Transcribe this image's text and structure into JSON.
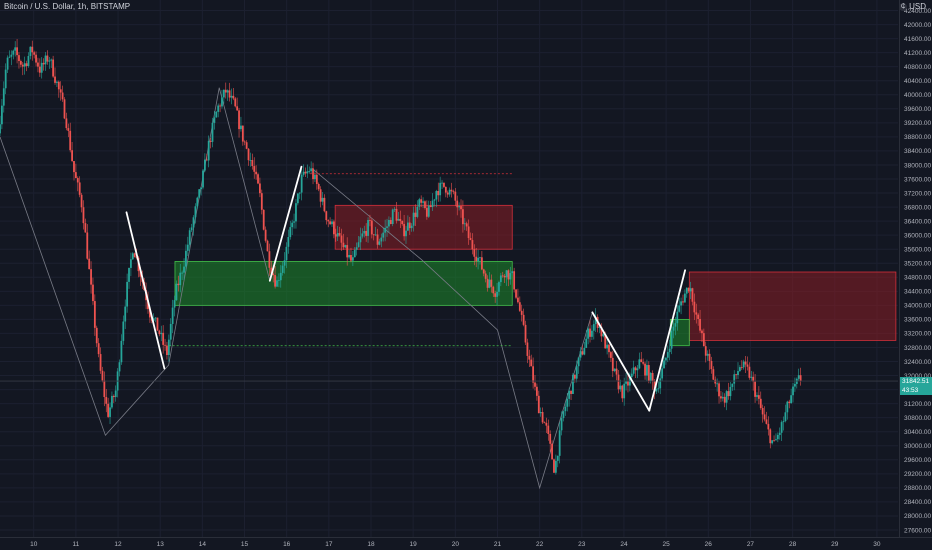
{
  "header": {
    "symbol_line": "Bitcoin / U.S. Dollar, 1h, BITSTAMP",
    "currency_icon": "coin-icon",
    "currency": "USD"
  },
  "price_tags": {
    "last_price": "31842.51",
    "countdown": "43:53",
    "tag_color": "#26a69a"
  },
  "colors": {
    "background": "#131722",
    "up": "#26a69a",
    "down": "#ef5350",
    "demand_zone": "#1e8a2a",
    "supply_zone": "#8a1d24",
    "swing_line": "#ffffff",
    "thin_line": "#787b86"
  },
  "chart_data": {
    "type": "candlestick",
    "title": "",
    "xlabel": "",
    "ylabel": "",
    "y_axis": {
      "ticks": [
        "42400.00",
        "42000.00",
        "41600.00",
        "41200.00",
        "40800.00",
        "40400.00",
        "40000.00",
        "39600.00",
        "39200.00",
        "38800.00",
        "38400.00",
        "38000.00",
        "37600.00",
        "37200.00",
        "36800.00",
        "36400.00",
        "36000.00",
        "35600.00",
        "35200.00",
        "34800.00",
        "34400.00",
        "34000.00",
        "33600.00",
        "33200.00",
        "32800.00",
        "32400.00",
        "32000.00",
        "31600.00",
        "31200.00",
        "30800.00",
        "30400.00",
        "30000.00",
        "29600.00",
        "29200.00",
        "28800.00",
        "28400.00",
        "28000.00",
        "27600.00"
      ],
      "ylim": [
        27400,
        42700
      ]
    },
    "x_axis": {
      "ticks": [
        "10",
        "11",
        "12",
        "13",
        "14",
        "15",
        "16",
        "17",
        "18",
        "19",
        "20",
        "21",
        "22",
        "23",
        "24",
        "25",
        "26",
        "27",
        "28",
        "29",
        "30"
      ],
      "xlim": [
        9.2,
        30.5
      ]
    },
    "price_path": [
      [
        9.2,
        38900
      ],
      [
        9.4,
        40900
      ],
      [
        9.6,
        41200
      ],
      [
        9.8,
        40800
      ],
      [
        10.0,
        41300
      ],
      [
        10.2,
        40700
      ],
      [
        10.4,
        41100
      ],
      [
        10.6,
        40300
      ],
      [
        10.8,
        39400
      ],
      [
        11.0,
        37800
      ],
      [
        11.2,
        36800
      ],
      [
        11.4,
        34500
      ],
      [
        11.6,
        32300
      ],
      [
        11.8,
        30900
      ],
      [
        12.0,
        31600
      ],
      [
        12.2,
        34000
      ],
      [
        12.4,
        35700
      ],
      [
        12.6,
        34800
      ],
      [
        12.8,
        33800
      ],
      [
        13.0,
        33300
      ],
      [
        13.2,
        32600
      ],
      [
        13.4,
        34300
      ],
      [
        13.6,
        35200
      ],
      [
        13.8,
        36300
      ],
      [
        14.0,
        37300
      ],
      [
        14.2,
        38600
      ],
      [
        14.4,
        39600
      ],
      [
        14.6,
        40100
      ],
      [
        14.8,
        39700
      ],
      [
        15.0,
        38800
      ],
      [
        15.2,
        38100
      ],
      [
        15.4,
        37200
      ],
      [
        15.6,
        35400
      ],
      [
        15.8,
        34600
      ],
      [
        16.0,
        35400
      ],
      [
        16.2,
        36400
      ],
      [
        16.4,
        37600
      ],
      [
        16.6,
        37900
      ],
      [
        16.8,
        37300
      ],
      [
        17.0,
        36500
      ],
      [
        17.2,
        36100
      ],
      [
        17.4,
        35600
      ],
      [
        17.6,
        35200
      ],
      [
        17.8,
        35900
      ],
      [
        18.0,
        36300
      ],
      [
        18.2,
        35800
      ],
      [
        18.4,
        36200
      ],
      [
        18.6,
        36700
      ],
      [
        18.8,
        36100
      ],
      [
        19.0,
        36400
      ],
      [
        19.2,
        36900
      ],
      [
        19.4,
        36600
      ],
      [
        19.6,
        37300
      ],
      [
        19.8,
        37400
      ],
      [
        20.0,
        37100
      ],
      [
        20.2,
        36500
      ],
      [
        20.4,
        35800
      ],
      [
        20.6,
        35300
      ],
      [
        20.8,
        34700
      ],
      [
        21.0,
        34400
      ],
      [
        21.2,
        35000
      ],
      [
        21.4,
        34800
      ],
      [
        21.6,
        33700
      ],
      [
        21.8,
        32400
      ],
      [
        22.0,
        31200
      ],
      [
        22.2,
        30500
      ],
      [
        22.4,
        29300
      ],
      [
        22.6,
        30900
      ],
      [
        22.8,
        31700
      ],
      [
        23.0,
        32500
      ],
      [
        23.2,
        33200
      ],
      [
        23.4,
        33600
      ],
      [
        23.6,
        32900
      ],
      [
        23.8,
        32100
      ],
      [
        24.0,
        31500
      ],
      [
        24.2,
        31900
      ],
      [
        24.4,
        32400
      ],
      [
        24.6,
        32100
      ],
      [
        24.8,
        31600
      ],
      [
        25.0,
        32300
      ],
      [
        25.2,
        33300
      ],
      [
        25.4,
        34100
      ],
      [
        25.6,
        34600
      ],
      [
        25.8,
        33500
      ],
      [
        26.0,
        32600
      ],
      [
        26.2,
        31800
      ],
      [
        26.4,
        31300
      ],
      [
        26.6,
        31700
      ],
      [
        26.8,
        32300
      ],
      [
        27.0,
        32100
      ],
      [
        27.2,
        31400
      ],
      [
        27.4,
        30600
      ],
      [
        27.6,
        30000
      ],
      [
        27.8,
        30600
      ],
      [
        28.0,
        31400
      ],
      [
        28.2,
        31900
      ]
    ],
    "zones": [
      {
        "name": "supply-zone-1",
        "kind": "supply",
        "x0": 17.15,
        "x1": 21.35,
        "y_top": 36850,
        "y_bottom": 35600
      },
      {
        "name": "demand-zone-1",
        "kind": "demand",
        "x0": 13.35,
        "x1": 21.35,
        "y_top": 35250,
        "y_bottom": 34000
      },
      {
        "name": "supply-zone-2",
        "kind": "supply",
        "x0": 25.55,
        "x1": 30.45,
        "y_top": 34950,
        "y_bottom": 33000
      },
      {
        "name": "demand-zone-2",
        "kind": "demand",
        "x0": 25.1,
        "x1": 25.55,
        "y_top": 33600,
        "y_bottom": 32850
      }
    ],
    "levels": [
      {
        "name": "supply-level-dashed",
        "kind": "supply",
        "x0": 16.55,
        "x1": 21.35,
        "y": 37750
      },
      {
        "name": "demand-level-dashed",
        "kind": "demand",
        "x0": 13.2,
        "x1": 21.35,
        "y": 32850
      },
      {
        "name": "last-price-line",
        "kind": "neutral",
        "x0": 9.2,
        "x1": 30.5,
        "y": 31842.51
      }
    ],
    "swing_lines": [
      [
        [
          12.2,
          36650
        ],
        [
          13.1,
          32200
        ]
      ],
      [
        [
          15.6,
          34700
        ],
        [
          16.35,
          37950
        ]
      ],
      [
        [
          23.25,
          33800
        ],
        [
          24.6,
          31000
        ]
      ],
      [
        [
          24.6,
          31000
        ],
        [
          25.45,
          35000
        ]
      ]
    ],
    "thin_lines": [
      [
        [
          9.2,
          38800
        ],
        [
          11.7,
          30300
        ],
        [
          13.2,
          32300
        ],
        [
          14.4,
          40200
        ],
        [
          15.6,
          34700
        ]
      ],
      [
        [
          16.6,
          37900
        ],
        [
          19.2,
          35300
        ],
        [
          21.0,
          33300
        ],
        [
          22.0,
          28800
        ],
        [
          23.25,
          33800
        ]
      ]
    ]
  }
}
